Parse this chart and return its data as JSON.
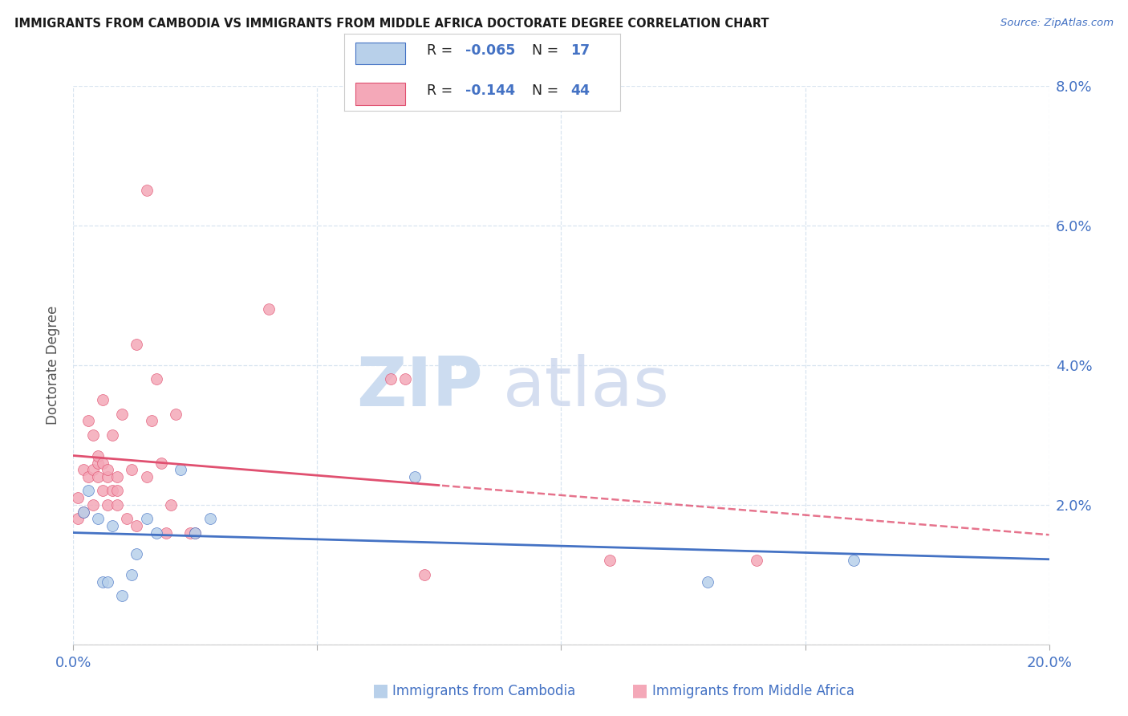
{
  "title": "IMMIGRANTS FROM CAMBODIA VS IMMIGRANTS FROM MIDDLE AFRICA DOCTORATE DEGREE CORRELATION CHART",
  "source": "Source: ZipAtlas.com",
  "ylabel": "Doctorate Degree",
  "xlim": [
    0.0,
    0.2
  ],
  "ylim": [
    0.0,
    0.08
  ],
  "xticks": [
    0.0,
    0.05,
    0.1,
    0.15,
    0.2
  ],
  "yticks": [
    0.0,
    0.02,
    0.04,
    0.06,
    0.08
  ],
  "xtick_labels_show": [
    "0.0%",
    "20.0%"
  ],
  "xtick_labels_pos": [
    0.0,
    0.2
  ],
  "ytick_labels": [
    "",
    "2.0%",
    "4.0%",
    "6.0%",
    "8.0%"
  ],
  "legend1_label": "Immigrants from Cambodia",
  "legend2_label": "Immigrants from Middle Africa",
  "R1": -0.065,
  "N1": 17,
  "R2": -0.144,
  "N2": 44,
  "color1": "#b8d0ea",
  "color2": "#f4a8b8",
  "line_color1": "#4472c4",
  "line_color2": "#e05070",
  "text_color_dark": "#333333",
  "text_color_blue": "#4472c4",
  "watermark_zip_color": "#ccdcf0",
  "watermark_atlas_color": "#c8d4ec",
  "blue_x": [
    0.002,
    0.003,
    0.005,
    0.006,
    0.007,
    0.008,
    0.01,
    0.012,
    0.013,
    0.015,
    0.017,
    0.022,
    0.025,
    0.028,
    0.07,
    0.13,
    0.16
  ],
  "blue_y": [
    0.019,
    0.022,
    0.018,
    0.009,
    0.009,
    0.017,
    0.007,
    0.01,
    0.013,
    0.018,
    0.016,
    0.025,
    0.016,
    0.018,
    0.024,
    0.009,
    0.012
  ],
  "pink_x": [
    0.001,
    0.001,
    0.002,
    0.002,
    0.003,
    0.003,
    0.004,
    0.004,
    0.004,
    0.005,
    0.005,
    0.005,
    0.006,
    0.006,
    0.006,
    0.007,
    0.007,
    0.007,
    0.008,
    0.008,
    0.009,
    0.009,
    0.009,
    0.01,
    0.011,
    0.012,
    0.013,
    0.013,
    0.015,
    0.015,
    0.016,
    0.017,
    0.018,
    0.019,
    0.02,
    0.021,
    0.024,
    0.025,
    0.04,
    0.065,
    0.068,
    0.072,
    0.11,
    0.14
  ],
  "pink_y": [
    0.018,
    0.021,
    0.025,
    0.019,
    0.024,
    0.032,
    0.02,
    0.025,
    0.03,
    0.024,
    0.026,
    0.027,
    0.022,
    0.026,
    0.035,
    0.02,
    0.024,
    0.025,
    0.022,
    0.03,
    0.02,
    0.024,
    0.022,
    0.033,
    0.018,
    0.025,
    0.017,
    0.043,
    0.024,
    0.065,
    0.032,
    0.038,
    0.026,
    0.016,
    0.02,
    0.033,
    0.016,
    0.016,
    0.048,
    0.038,
    0.038,
    0.01,
    0.012,
    0.012
  ],
  "point_size": 100,
  "grid_color": "#d8e4f0",
  "spine_color": "#d0d8e8"
}
